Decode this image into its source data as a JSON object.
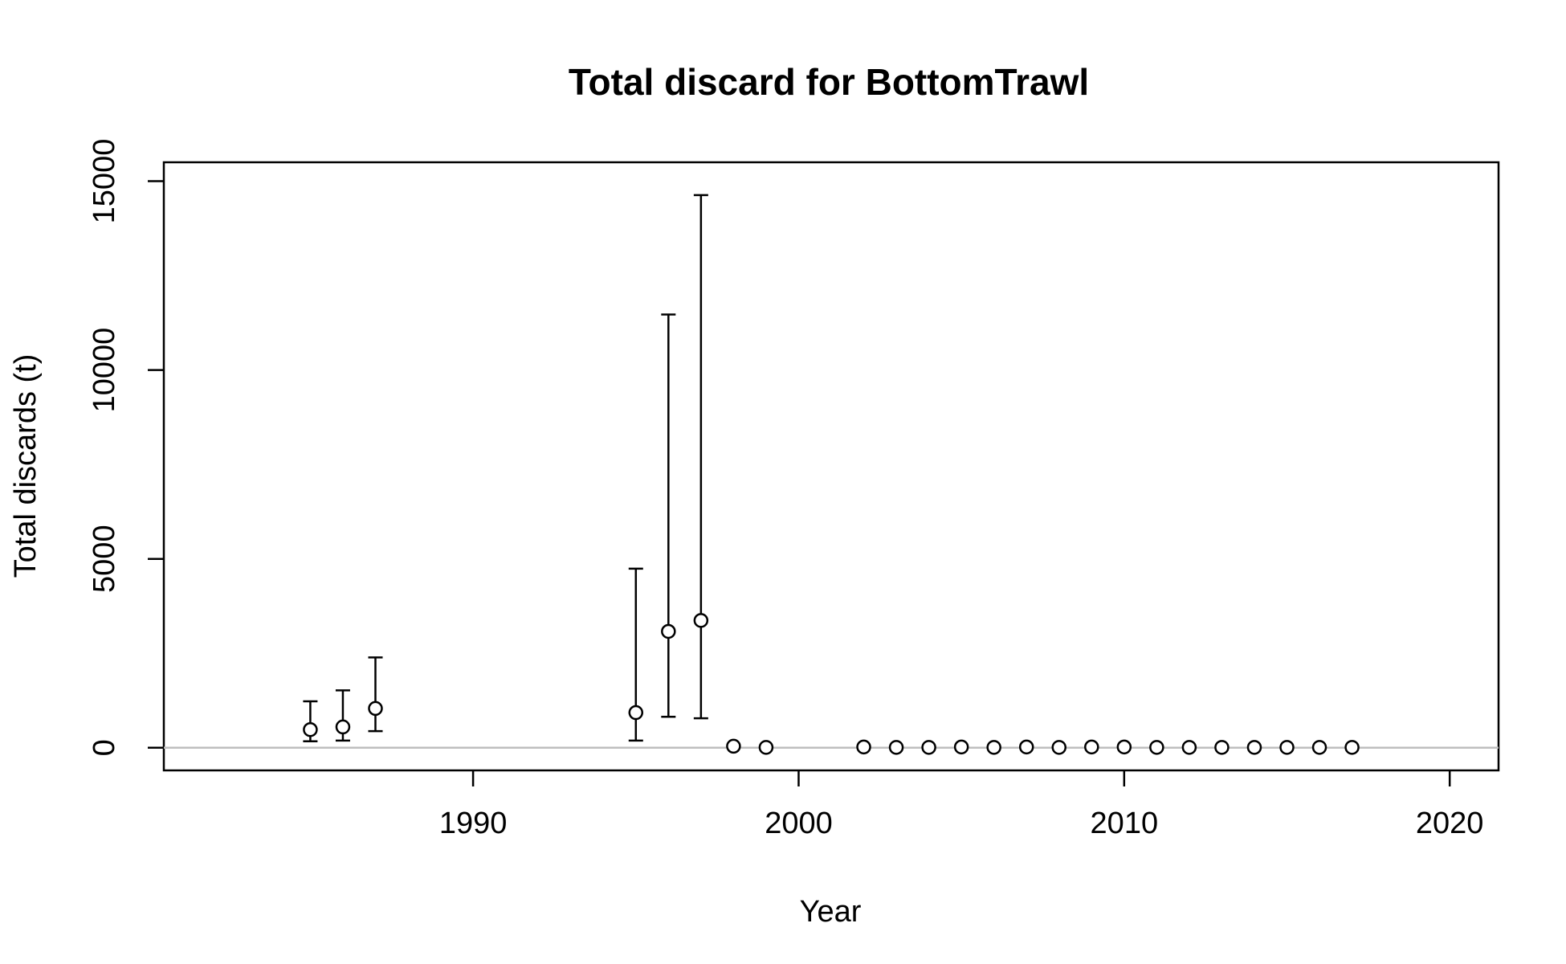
{
  "chart_data": {
    "type": "scatter",
    "title": "Total discard for BottomTrawl",
    "xlabel": "Year",
    "ylabel": "Total discards (t)",
    "xlim": [
      1980.5,
      2021.5
    ],
    "ylim": [
      -600,
      15500
    ],
    "xticks": [
      1990,
      2000,
      2010,
      2020
    ],
    "yticks": [
      0,
      5000,
      10000,
      15000
    ],
    "reference_line": {
      "y": 0,
      "color": "#bebebe"
    },
    "grid": false,
    "legend": "none",
    "points": [
      {
        "x": 1985,
        "y": 480,
        "lower": 170,
        "upper": 1230
      },
      {
        "x": 1986,
        "y": 550,
        "lower": 190,
        "upper": 1520
      },
      {
        "x": 1987,
        "y": 1040,
        "lower": 440,
        "upper": 2390
      },
      {
        "x": 1995,
        "y": 930,
        "lower": 190,
        "upper": 4740
      },
      {
        "x": 1996,
        "y": 3080,
        "lower": 820,
        "upper": 11470
      },
      {
        "x": 1997,
        "y": 3370,
        "lower": 780,
        "upper": 14630
      },
      {
        "x": 1998,
        "y": 40
      },
      {
        "x": 1999,
        "y": 10
      },
      {
        "x": 2002,
        "y": 20
      },
      {
        "x": 2003,
        "y": 10
      },
      {
        "x": 2004,
        "y": 10
      },
      {
        "x": 2005,
        "y": 20
      },
      {
        "x": 2006,
        "y": 10
      },
      {
        "x": 2007,
        "y": 20
      },
      {
        "x": 2008,
        "y": 10
      },
      {
        "x": 2009,
        "y": 20
      },
      {
        "x": 2010,
        "y": 20
      },
      {
        "x": 2011,
        "y": 10
      },
      {
        "x": 2012,
        "y": 10
      },
      {
        "x": 2013,
        "y": 10
      },
      {
        "x": 2014,
        "y": 10
      },
      {
        "x": 2015,
        "y": 10
      },
      {
        "x": 2016,
        "y": 10
      },
      {
        "x": 2017,
        "y": 10
      }
    ]
  }
}
